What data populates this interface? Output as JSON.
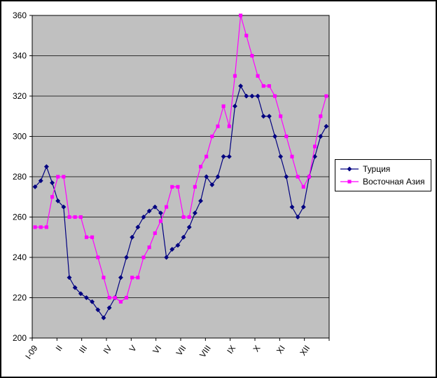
{
  "chart_data": {
    "type": "line",
    "title": "",
    "x_tick_labels": [
      "I-09",
      "II",
      "III",
      "IV",
      "V",
      "VI",
      "VII",
      "VIII",
      "IX",
      "X",
      "XI",
      "XII"
    ],
    "y_ticks": [
      200,
      220,
      240,
      260,
      280,
      300,
      320,
      340,
      360
    ],
    "ylim": [
      200,
      360
    ],
    "grid": true,
    "legend_position": "right",
    "plot_bg": "#c0c0c0",
    "grid_color": "#000000",
    "axis_color": "#000000",
    "series": [
      {
        "name": "Турция",
        "color": "#000080",
        "marker": "diamond",
        "values": [
          275,
          278,
          285,
          277,
          268,
          265,
          230,
          225,
          222,
          220,
          218,
          214,
          210,
          215,
          220,
          230,
          240,
          250,
          255,
          260,
          263,
          265,
          262,
          240,
          244,
          246,
          250,
          255,
          262,
          268,
          280,
          276,
          280,
          290,
          290,
          315,
          325,
          320,
          320,
          320,
          310,
          310,
          300,
          290,
          280,
          265,
          260,
          265,
          280,
          290,
          300,
          305
        ]
      },
      {
        "name": "Восточная Азия",
        "color": "#ff00ff",
        "marker": "square",
        "values": [
          255,
          255,
          255,
          270,
          280,
          280,
          260,
          260,
          260,
          250,
          250,
          240,
          230,
          220,
          220,
          218,
          220,
          230,
          230,
          240,
          245,
          252,
          258,
          265,
          275,
          275,
          260,
          260,
          275,
          285,
          290,
          300,
          305,
          315,
          305,
          330,
          360,
          350,
          340,
          330,
          325,
          325,
          320,
          310,
          300,
          290,
          280,
          275,
          280,
          295,
          310,
          320
        ]
      }
    ]
  }
}
